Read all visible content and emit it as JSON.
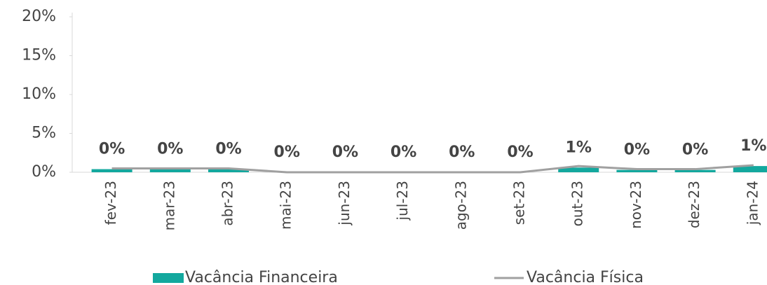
{
  "chart_data": {
    "type": "bar_line",
    "categories": [
      "fev-23",
      "mar-23",
      "abr-23",
      "mai-23",
      "jun-23",
      "jul-23",
      "ago-23",
      "set-23",
      "out-23",
      "nov-23",
      "dez-23",
      "jan-24"
    ],
    "series": [
      {
        "name": "Vacância Financeira",
        "type": "bar",
        "color": "#13a89e",
        "values": [
          0.4,
          0.4,
          0.4,
          0,
          0,
          0,
          0,
          0,
          0.6,
          0.3,
          0.3,
          0.8
        ],
        "value_labels": [
          "0%",
          "0%",
          "0%",
          "0%",
          "0%",
          "0%",
          "0%",
          "0%",
          "1%",
          "0%",
          "0%",
          "1%"
        ]
      },
      {
        "name": "Vacância Física",
        "type": "line",
        "color": "#a0a0a0",
        "values": [
          0.5,
          0.5,
          0.5,
          0,
          0,
          0,
          0,
          0,
          0.8,
          0.4,
          0.4,
          0.9
        ]
      }
    ],
    "ylim": [
      0,
      20
    ],
    "yticks": [
      {
        "value": 0,
        "label": "0%"
      },
      {
        "value": 5,
        "label": "5%"
      },
      {
        "value": 10,
        "label": "10%"
      },
      {
        "value": 15,
        "label": "15%"
      },
      {
        "value": 20,
        "label": "20%"
      }
    ],
    "legend": "bottom"
  }
}
